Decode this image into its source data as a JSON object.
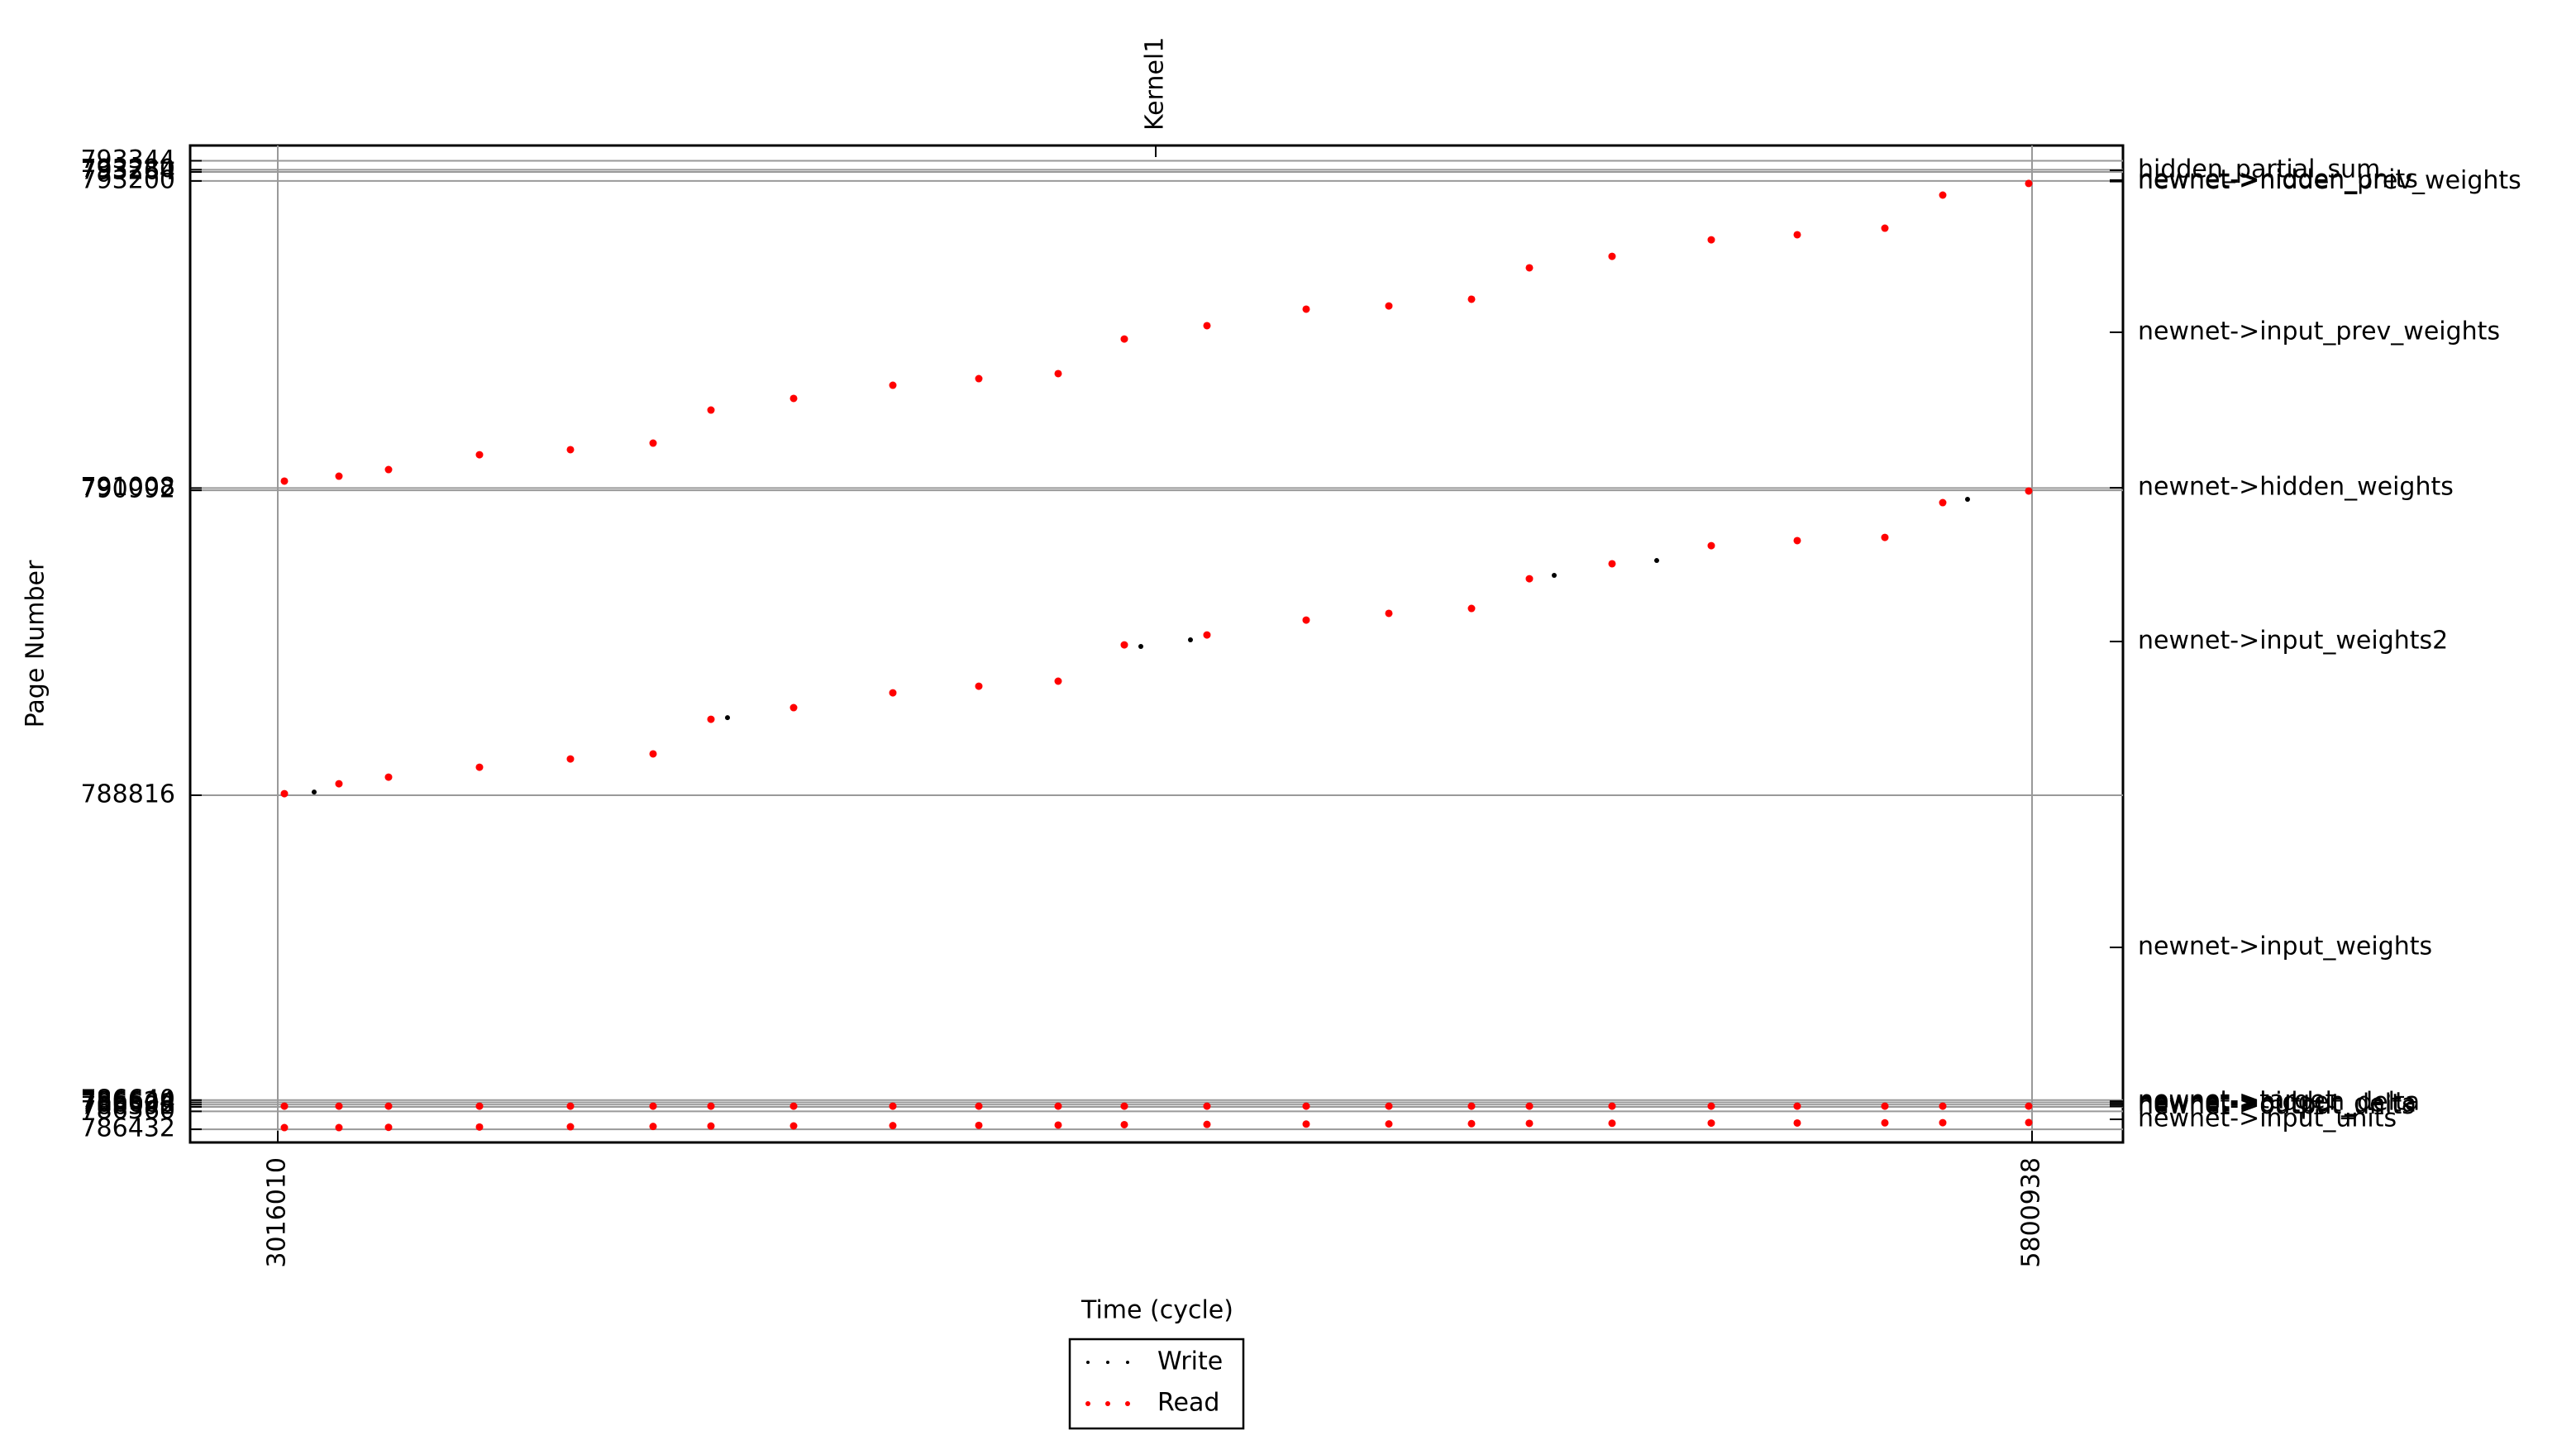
{
  "chart_data": {
    "type": "scatter",
    "x_label": "Time (cycle)",
    "y_label": "Page Number",
    "xlim": [
      2876896,
      5945302
    ],
    "ylim": [
      786338,
      793453
    ],
    "xticks": [
      3016010,
      5800938
    ],
    "yticks": [
      786432,
      786560,
      786592,
      786608,
      786624,
      786640,
      788816,
      790992,
      791008,
      793200,
      793264,
      793280,
      793344
    ],
    "x2lim": [
      2876896,
      5945302
    ],
    "x2ticks": [
      {
        "value": 4409779,
        "label": "Kernel1"
      }
    ],
    "y2lim": [
      786338,
      793453
    ],
    "y2ticks": [
      {
        "value": 793276,
        "label": "hidden_partial_sum"
      },
      {
        "value": 793206,
        "label": "newnet->hidden_units"
      },
      {
        "value": 793196,
        "label": "newnet->hidden_prev_weights"
      },
      {
        "value": 792120,
        "label": "newnet->input_prev_weights"
      },
      {
        "value": 791010,
        "label": "newnet->hidden_weights"
      },
      {
        "value": 789913,
        "label": "newnet->input_weights2"
      },
      {
        "value": 787730,
        "label": "newnet->input_weights"
      },
      {
        "value": 786632,
        "label": "newnet->target"
      },
      {
        "value": 786620,
        "label": "newnet->hidden_delta"
      },
      {
        "value": 786608,
        "label": "newnet->output_delta"
      },
      {
        "value": 786596,
        "label": "newnet->output_units"
      },
      {
        "value": 786503,
        "label": "newnet->input_units"
      }
    ],
    "grid": true,
    "legend": "lower center",
    "series": [
      {
        "name": "Write",
        "color": "#000000",
        "x": [
          3073756,
          3729958,
          4386156,
          4464900,
          5042356,
          5205093,
          5698556
        ],
        "y": [
          788839,
          789370,
          789878,
          789925,
          790385,
          790491,
          790928
        ]
      },
      {
        "name": "Read",
        "color": "#ff0000",
        "x": [
          3026509,
          3113128,
          3191872,
          3336236,
          3480600,
          3611840,
          3703708,
          3834948,
          3992436,
          4128925,
          4254916,
          4359908,
          4491148,
          4648636,
          4779876,
          4911116,
          5002984,
          5134224,
          5291712,
          5428201,
          5567316,
          5659184,
          5795673,
          3026509,
          3113128,
          3191872,
          3336236,
          3480600,
          3611840,
          3703708,
          3834948,
          3992436,
          4128925,
          4254916,
          4359908,
          4491148,
          4648636,
          4779876,
          4911116,
          5002984,
          5134224,
          5291712,
          5428201,
          5567316,
          5659184,
          5795673,
          3026509,
          3113128,
          3191872,
          3336236,
          3480600,
          3611840,
          3703708,
          3834948,
          3992436,
          4128925,
          4254916,
          4359908,
          4491148,
          4648636,
          4779876,
          4911116,
          5002984,
          5134224,
          5291712,
          5428201,
          5567316,
          5659184,
          5795673,
          3026509,
          3113128,
          3191872,
          3336236,
          3480600,
          3611840,
          3703708,
          3834948,
          3992436,
          4128925,
          4254916,
          4359908,
          4491148,
          4648636,
          4779876,
          4911116,
          5002984,
          5134224,
          5291712,
          5428201,
          5567316,
          5659184,
          5795673
        ],
        "y": [
          791058,
          791093,
          791140,
          791246,
          791282,
          791329,
          791565,
          791648,
          791742,
          791789,
          791825,
          792072,
          792167,
          792285,
          792308,
          792356,
          792580,
          792662,
          792780,
          792816,
          792863,
          793099,
          793182,
          788827,
          788898,
          788945,
          789016,
          789075,
          789111,
          789358,
          789441,
          789547,
          789594,
          789630,
          789889,
          789960,
          790066,
          790114,
          790149,
          790361,
          790468,
          790597,
          790633,
          790656,
          790904,
          790987,
          786597,
          786597,
          786597,
          786597,
          786597,
          786597,
          786597,
          786597,
          786597,
          786597,
          786597,
          786597,
          786597,
          786597,
          786597,
          786597,
          786597,
          786597,
          786597,
          786597,
          786597,
          786597,
          786597,
          786444,
          786444,
          786446,
          786448,
          786450,
          786452,
          786455,
          786456,
          786458,
          786460,
          786462,
          786465,
          786467,
          786469,
          786470,
          786472,
          786474,
          786475,
          786476,
          786477,
          786478,
          786479,
          786480
        ]
      }
    ]
  }
}
